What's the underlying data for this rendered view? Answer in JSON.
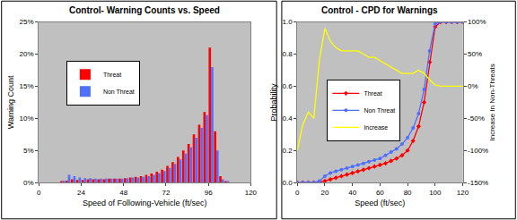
{
  "chart_data": [
    {
      "type": "bar",
      "title": "Control- Warning Counts vs. Speed",
      "xlabel": "Speed of Following-Vehicle (ft/sec)",
      "ylabel": "Warning Count",
      "bins": [
        0,
        3,
        6,
        9,
        12,
        15,
        18,
        21,
        24,
        27,
        30,
        33,
        36,
        39,
        42,
        45,
        48,
        51,
        54,
        57,
        60,
        63,
        66,
        69,
        72,
        75,
        78,
        81,
        84,
        87,
        90,
        93,
        96,
        99,
        102,
        105,
        108,
        111,
        114,
        117,
        120
      ],
      "series": [
        {
          "name": "Threat",
          "color": "#ff0000",
          "values": [
            0,
            0,
            0,
            0,
            0.1,
            0.3,
            0.5,
            0.4,
            0.4,
            0.5,
            0.5,
            0.5,
            0.5,
            0.6,
            0.6,
            0.6,
            0.7,
            0.8,
            0.9,
            1.0,
            1.2,
            1.4,
            1.7,
            2.0,
            2.6,
            3.2,
            4.0,
            5.0,
            6.0,
            7.5,
            9.0,
            11.0,
            21.0,
            8.0,
            1.0,
            0.2,
            0,
            0,
            0,
            0
          ]
        },
        {
          "name": "Non Threat",
          "color": "#4f6fff",
          "values": [
            0,
            0,
            0,
            0,
            0.3,
            1.2,
            1.0,
            0.8,
            0.7,
            0.7,
            0.6,
            0.6,
            0.6,
            0.6,
            0.6,
            0.6,
            0.7,
            0.8,
            0.8,
            0.9,
            1.0,
            1.2,
            1.5,
            1.8,
            2.3,
            2.9,
            3.6,
            4.5,
            5.5,
            7.0,
            8.5,
            10.5,
            18.0,
            5.0,
            0.5,
            0.1,
            0,
            0,
            0,
            0
          ]
        }
      ],
      "xlim": [
        0,
        120
      ],
      "xticks": [
        0,
        24,
        48,
        72,
        96,
        120
      ],
      "ylim": [
        0,
        25
      ],
      "yticks": [
        {
          "value": 0,
          "label": "0%"
        },
        {
          "value": 5,
          "label": "5%"
        },
        {
          "value": 10,
          "label": "10%"
        },
        {
          "value": 15,
          "label": "15%"
        },
        {
          "value": 20,
          "label": "20%"
        },
        {
          "value": 25,
          "label": "25%"
        }
      ],
      "grid": false,
      "legend": "left"
    },
    {
      "type": "line",
      "title": "Control - CPD for Warnings",
      "xlabel": "Speed (ft/sec)",
      "ylabel": "Probability",
      "y2label": "Increase In Non-Threats",
      "x": [
        0,
        4,
        8,
        12,
        16,
        20,
        24,
        28,
        32,
        36,
        40,
        44,
        48,
        52,
        56,
        60,
        64,
        68,
        72,
        76,
        80,
        84,
        88,
        92,
        96,
        100,
        104,
        108,
        112,
        116,
        120
      ],
      "series": [
        {
          "name": "Threat",
          "color": "#ff0000",
          "marker": "diamond",
          "values": [
            0,
            0,
            0,
            0,
            0.005,
            0.01,
            0.02,
            0.03,
            0.04,
            0.05,
            0.06,
            0.07,
            0.08,
            0.09,
            0.1,
            0.11,
            0.12,
            0.135,
            0.15,
            0.17,
            0.2,
            0.26,
            0.35,
            0.5,
            0.75,
            0.97,
            1.0,
            1.0,
            1.0,
            1.0,
            1.0
          ]
        },
        {
          "name": "Non Threat",
          "color": "#4f6fff",
          "marker": "circle",
          "values": [
            0,
            0,
            0,
            0,
            0.01,
            0.04,
            0.06,
            0.07,
            0.08,
            0.09,
            0.1,
            0.11,
            0.12,
            0.13,
            0.14,
            0.15,
            0.17,
            0.19,
            0.21,
            0.24,
            0.28,
            0.34,
            0.43,
            0.58,
            0.82,
            0.99,
            1.0,
            1.0,
            1.0,
            1.0,
            1.0
          ]
        },
        {
          "name": "Increase",
          "color": "#ffff00",
          "marker": "none",
          "axis": "y2",
          "values": [
            -100,
            -60,
            -40,
            -50,
            40,
            90,
            70,
            60,
            55,
            55,
            55,
            55,
            50,
            45,
            45,
            40,
            35,
            30,
            25,
            20,
            20,
            20,
            25,
            20,
            10,
            2,
            0,
            0,
            0,
            0,
            0
          ]
        }
      ],
      "xlim": [
        0,
        120
      ],
      "xticks": [
        0,
        20,
        40,
        60,
        80,
        100,
        120
      ],
      "ylim": [
        0,
        1
      ],
      "yticks": [
        {
          "value": 0,
          "label": "0.0"
        },
        {
          "value": 0.2,
          "label": "0.2"
        },
        {
          "value": 0.4,
          "label": "0.4"
        },
        {
          "value": 0.6,
          "label": "0.6"
        },
        {
          "value": 0.8,
          "label": "0.8"
        },
        {
          "value": 1,
          "label": "1.0"
        }
      ],
      "y2lim": [
        -150,
        100
      ],
      "y2ticks": [
        {
          "value": -150,
          "label": "-150%"
        },
        {
          "value": -100,
          "label": "-100%"
        },
        {
          "value": -50,
          "label": "-50%"
        },
        {
          "value": 0,
          "label": "0%"
        },
        {
          "value": 50,
          "label": "50%"
        },
        {
          "value": 100,
          "label": "100%"
        }
      ],
      "grid": false,
      "legend": "bottom"
    }
  ]
}
